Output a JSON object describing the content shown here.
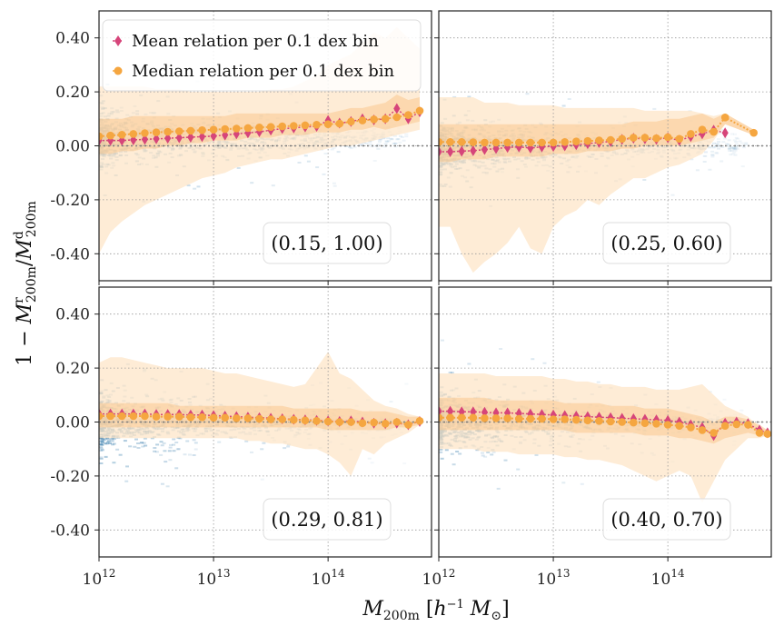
{
  "chart_data": {
    "type": "scatter",
    "layout": "2x2 shared axes",
    "xlabel": "M_200m [h^-1 M_sun]",
    "ylabel": "1 - M^r_200m / M^d_200m",
    "x_scale": "log",
    "xlim": [
      1000000000000.0,
      800000000000000.0
    ],
    "ylim": [
      -0.5,
      0.5
    ],
    "x_ticks": [
      {
        "base": "10",
        "exp": "12",
        "value": 1000000000000.0
      },
      {
        "base": "10",
        "exp": "13",
        "value": 10000000000000.0
      },
      {
        "base": "10",
        "exp": "14",
        "value": 100000000000000.0
      }
    ],
    "y_ticks": [
      {
        "label": "0.40",
        "value": 0.4
      },
      {
        "label": "0.20",
        "value": 0.2
      },
      {
        "label": "0.00",
        "value": 0.0
      },
      {
        "label": "-0.20",
        "value": -0.2
      },
      {
        "label": "-0.40",
        "value": -0.4
      }
    ],
    "legend": [
      {
        "name": "Mean relation per 0.1 dex bin",
        "marker": "diamond",
        "color": "#d6457a"
      },
      {
        "name": "Median relation per 0.1 dex bin",
        "marker": "circle",
        "color": "#f5a640"
      }
    ],
    "colors": {
      "mean": "#d6457a",
      "median": "#f5a640",
      "band_outer": "#fde5c8",
      "band_inner": "#f9c98f",
      "density": "#3a7fae",
      "zero_line": "#777777"
    },
    "panels": [
      {
        "label": "(0.15, 1.00)",
        "logm": [
          12.0,
          12.1,
          12.2,
          12.3,
          12.4,
          12.5,
          12.6,
          12.7,
          12.8,
          12.9,
          13.0,
          13.1,
          13.2,
          13.3,
          13.4,
          13.5,
          13.6,
          13.7,
          13.8,
          13.9,
          14.0,
          14.1,
          14.2,
          14.3,
          14.4,
          14.5,
          14.6,
          14.7,
          14.8
        ],
        "mean": [
          0.02,
          0.02,
          0.02,
          0.022,
          0.024,
          0.026,
          0.028,
          0.03,
          0.032,
          0.034,
          0.036,
          0.04,
          0.044,
          0.048,
          0.052,
          0.058,
          0.064,
          0.066,
          0.07,
          0.072,
          0.094,
          0.084,
          0.09,
          0.1,
          0.096,
          0.1,
          0.138,
          0.1,
          0.126
        ],
        "median": [
          0.035,
          0.038,
          0.041,
          0.044,
          0.047,
          0.05,
          0.052,
          0.054,
          0.056,
          0.058,
          0.06,
          0.062,
          0.064,
          0.066,
          0.068,
          0.07,
          0.072,
          0.074,
          0.076,
          0.078,
          0.08,
          0.082,
          0.09,
          0.094,
          0.098,
          0.1,
          0.106,
          0.114,
          0.13
        ],
        "p16": [
          -0.03,
          -0.03,
          -0.02,
          -0.02,
          -0.01,
          -0.01,
          0.0,
          0.0,
          0.01,
          0.01,
          0.02,
          0.02,
          0.02,
          0.03,
          0.03,
          0.03,
          0.04,
          0.04,
          0.04,
          0.05,
          0.05,
          0.05,
          0.06,
          0.06,
          0.07,
          0.06,
          0.07,
          0.08,
          0.09
        ],
        "p84": [
          0.1,
          0.1,
          0.1,
          0.11,
          0.11,
          0.11,
          0.11,
          0.11,
          0.11,
          0.11,
          0.11,
          0.11,
          0.12,
          0.12,
          0.12,
          0.12,
          0.12,
          0.12,
          0.12,
          0.12,
          0.12,
          0.13,
          0.14,
          0.14,
          0.15,
          0.16,
          0.19,
          0.17,
          0.18
        ],
        "p2": [
          -0.4,
          -0.32,
          -0.28,
          -0.25,
          -0.22,
          -0.2,
          -0.18,
          -0.16,
          -0.14,
          -0.12,
          -0.11,
          -0.1,
          -0.08,
          -0.07,
          -0.06,
          -0.05,
          -0.05,
          -0.04,
          -0.03,
          -0.02,
          -0.01,
          0.0,
          0.0,
          0.01,
          0.02,
          0.03,
          0.04,
          0.05,
          0.06
        ],
        "p98": [
          0.22,
          0.22,
          0.22,
          0.22,
          0.22,
          0.21,
          0.21,
          0.21,
          0.2,
          0.2,
          0.2,
          0.2,
          0.2,
          0.2,
          0.2,
          0.21,
          0.21,
          0.22,
          0.24,
          0.26,
          0.3,
          0.32,
          0.34,
          0.38,
          0.42,
          0.4,
          0.44,
          0.4,
          0.36
        ]
      },
      {
        "label": "(0.25, 0.60)",
        "logm": [
          12.0,
          12.1,
          12.2,
          12.3,
          12.4,
          12.5,
          12.6,
          12.7,
          12.8,
          12.9,
          13.0,
          13.1,
          13.2,
          13.3,
          13.4,
          13.5,
          13.6,
          13.7,
          13.8,
          13.9,
          14.0,
          14.1,
          14.2,
          14.3,
          14.4,
          14.5,
          14.75
        ],
        "mean": [
          -0.022,
          -0.022,
          -0.02,
          -0.018,
          -0.014,
          -0.01,
          -0.006,
          -0.004,
          -0.008,
          -0.004,
          -0.002,
          0.0,
          0.004,
          0.008,
          0.012,
          0.016,
          0.024,
          0.028,
          0.026,
          0.024,
          0.03,
          0.02,
          0.034,
          0.044,
          0.058,
          0.048,
          null
        ],
        "median": [
          0.014,
          0.014,
          0.014,
          0.013,
          0.012,
          0.012,
          0.012,
          0.012,
          0.012,
          0.012,
          0.012,
          0.014,
          0.016,
          0.018,
          0.02,
          0.022,
          0.026,
          0.03,
          0.03,
          0.028,
          0.032,
          0.026,
          0.044,
          0.06,
          0.052,
          0.105,
          0.048
        ],
        "p16": [
          -0.06,
          -0.06,
          -0.05,
          -0.05,
          -0.05,
          -0.04,
          -0.04,
          -0.04,
          -0.04,
          -0.04,
          -0.03,
          -0.03,
          -0.03,
          -0.02,
          -0.02,
          -0.02,
          -0.01,
          -0.01,
          0.0,
          0.0,
          0.0,
          0.0,
          0.01,
          0.02,
          0.03,
          0.08,
          0.04
        ],
        "p84": [
          0.08,
          0.08,
          0.08,
          0.08,
          0.08,
          0.08,
          0.08,
          0.08,
          0.08,
          0.08,
          0.08,
          0.08,
          0.08,
          0.08,
          0.08,
          0.08,
          0.08,
          0.09,
          0.09,
          0.09,
          0.1,
          0.1,
          0.11,
          0.12,
          0.1,
          0.12,
          0.06
        ],
        "p2": [
          -0.3,
          -0.3,
          -0.4,
          -0.47,
          -0.43,
          -0.4,
          -0.36,
          -0.3,
          -0.38,
          -0.4,
          -0.3,
          -0.26,
          -0.24,
          -0.2,
          -0.22,
          -0.18,
          -0.15,
          -0.12,
          -0.12,
          -0.1,
          -0.08,
          -0.07,
          -0.05,
          -0.03,
          0.02,
          0.08,
          0.04
        ],
        "p98": [
          0.18,
          0.18,
          0.18,
          0.18,
          0.16,
          0.16,
          0.16,
          0.15,
          0.15,
          0.15,
          0.15,
          0.14,
          0.14,
          0.14,
          0.14,
          0.14,
          0.14,
          0.14,
          0.13,
          0.13,
          0.13,
          0.13,
          0.13,
          0.12,
          0.11,
          0.12,
          0.06
        ]
      },
      {
        "label": "(0.29, 0.81)",
        "logm": [
          12.0,
          12.1,
          12.2,
          12.3,
          12.4,
          12.5,
          12.6,
          12.7,
          12.8,
          12.9,
          13.0,
          13.1,
          13.2,
          13.3,
          13.4,
          13.5,
          13.6,
          13.7,
          13.8,
          13.9,
          14.0,
          14.1,
          14.2,
          14.3,
          14.4,
          14.5,
          14.6,
          14.7,
          14.8
        ],
        "mean": [
          0.03,
          0.03,
          0.03,
          0.03,
          0.03,
          0.028,
          0.028,
          0.028,
          0.026,
          0.026,
          0.024,
          0.022,
          0.02,
          0.018,
          0.016,
          0.014,
          0.012,
          0.01,
          0.008,
          0.006,
          0.004,
          0.002,
          0.004,
          0.0,
          -0.004,
          -0.006,
          -0.004,
          -0.01,
          0.002
        ],
        "median": [
          0.022,
          0.022,
          0.022,
          0.022,
          0.022,
          0.02,
          0.02,
          0.02,
          0.018,
          0.018,
          0.016,
          0.016,
          0.014,
          0.014,
          0.012,
          0.01,
          0.01,
          0.008,
          0.006,
          0.004,
          0.002,
          0.0,
          0.0,
          -0.004,
          -0.002,
          -0.006,
          0.0,
          -0.01,
          0.004
        ],
        "p16": [
          -0.02,
          -0.02,
          -0.02,
          -0.02,
          -0.02,
          -0.02,
          -0.02,
          -0.02,
          -0.02,
          -0.02,
          -0.02,
          -0.02,
          -0.02,
          -0.02,
          -0.02,
          -0.02,
          -0.02,
          -0.02,
          -0.02,
          -0.02,
          -0.03,
          -0.03,
          -0.03,
          -0.03,
          -0.03,
          -0.03,
          -0.02,
          -0.02,
          -0.01
        ],
        "p84": [
          0.07,
          0.07,
          0.07,
          0.07,
          0.07,
          0.07,
          0.07,
          0.06,
          0.06,
          0.06,
          0.06,
          0.06,
          0.06,
          0.06,
          0.06,
          0.06,
          0.06,
          0.05,
          0.05,
          0.05,
          0.05,
          0.05,
          0.05,
          0.04,
          0.04,
          0.04,
          0.03,
          0.02,
          0.02
        ],
        "p2": [
          -0.06,
          -0.06,
          -0.06,
          -0.06,
          -0.06,
          -0.06,
          -0.06,
          -0.06,
          -0.06,
          -0.06,
          -0.06,
          -0.06,
          -0.06,
          -0.07,
          -0.07,
          -0.08,
          -0.08,
          -0.09,
          -0.1,
          -0.1,
          -0.12,
          -0.15,
          -0.2,
          -0.1,
          -0.12,
          -0.08,
          -0.06,
          -0.04,
          -0.01
        ],
        "p98": [
          0.22,
          0.24,
          0.24,
          0.23,
          0.22,
          0.21,
          0.2,
          0.2,
          0.2,
          0.2,
          0.19,
          0.18,
          0.18,
          0.17,
          0.16,
          0.15,
          0.14,
          0.13,
          0.14,
          0.2,
          0.26,
          0.18,
          0.16,
          0.12,
          0.08,
          0.06,
          0.05,
          0.03,
          0.02
        ]
      },
      {
        "label": "(0.40, 0.70)",
        "logm": [
          12.0,
          12.1,
          12.2,
          12.3,
          12.4,
          12.5,
          12.6,
          12.7,
          12.8,
          12.9,
          13.0,
          13.1,
          13.2,
          13.3,
          13.4,
          13.5,
          13.6,
          13.7,
          13.8,
          13.9,
          14.0,
          14.1,
          14.2,
          14.3,
          14.4,
          14.5,
          14.6,
          14.7,
          14.8,
          14.87
        ],
        "mean": [
          0.04,
          0.04,
          0.038,
          0.038,
          0.036,
          0.034,
          0.034,
          0.032,
          0.03,
          0.028,
          0.026,
          0.024,
          0.022,
          0.02,
          0.018,
          0.016,
          0.014,
          0.012,
          0.01,
          0.008,
          0.006,
          0.0,
          -0.01,
          -0.02,
          -0.05,
          -0.004,
          0.0,
          -0.006,
          -0.03,
          -0.04
        ],
        "median": [
          0.016,
          0.016,
          0.016,
          0.016,
          0.014,
          0.014,
          0.014,
          0.012,
          0.012,
          0.012,
          0.01,
          0.01,
          0.008,
          0.006,
          0.004,
          0.002,
          0.0,
          -0.002,
          -0.004,
          -0.006,
          -0.01,
          -0.014,
          -0.02,
          -0.03,
          -0.04,
          -0.014,
          -0.008,
          -0.01,
          -0.04,
          -0.044
        ],
        "p16": [
          -0.03,
          -0.03,
          -0.03,
          -0.03,
          -0.03,
          -0.03,
          -0.03,
          -0.03,
          -0.03,
          -0.03,
          -0.03,
          -0.03,
          -0.04,
          -0.04,
          -0.04,
          -0.04,
          -0.04,
          -0.04,
          -0.05,
          -0.05,
          -0.05,
          -0.06,
          -0.06,
          -0.07,
          -0.08,
          -0.06,
          -0.05,
          -0.04,
          -0.05,
          -0.05
        ],
        "p84": [
          0.09,
          0.09,
          0.09,
          0.09,
          0.09,
          0.08,
          0.08,
          0.08,
          0.08,
          0.08,
          0.08,
          0.07,
          0.07,
          0.07,
          0.07,
          0.06,
          0.06,
          0.06,
          0.05,
          0.05,
          0.05,
          0.04,
          0.03,
          0.02,
          0.0,
          0.02,
          0.02,
          0.01,
          -0.01,
          -0.03
        ],
        "p2": [
          -0.1,
          -0.1,
          -0.1,
          -0.1,
          -0.11,
          -0.11,
          -0.11,
          -0.12,
          -0.12,
          -0.12,
          -0.12,
          -0.13,
          -0.13,
          -0.14,
          -0.14,
          -0.15,
          -0.16,
          -0.18,
          -0.2,
          -0.22,
          -0.2,
          -0.18,
          -0.2,
          -0.3,
          -0.22,
          -0.14,
          -0.1,
          -0.06,
          -0.06,
          -0.05
        ],
        "p98": [
          0.18,
          0.18,
          0.18,
          0.18,
          0.18,
          0.17,
          0.17,
          0.17,
          0.17,
          0.17,
          0.16,
          0.16,
          0.15,
          0.15,
          0.14,
          0.14,
          0.13,
          0.13,
          0.13,
          0.12,
          0.12,
          0.12,
          0.13,
          0.14,
          0.1,
          0.06,
          0.04,
          0.02,
          -0.02,
          -0.03
        ]
      }
    ]
  }
}
